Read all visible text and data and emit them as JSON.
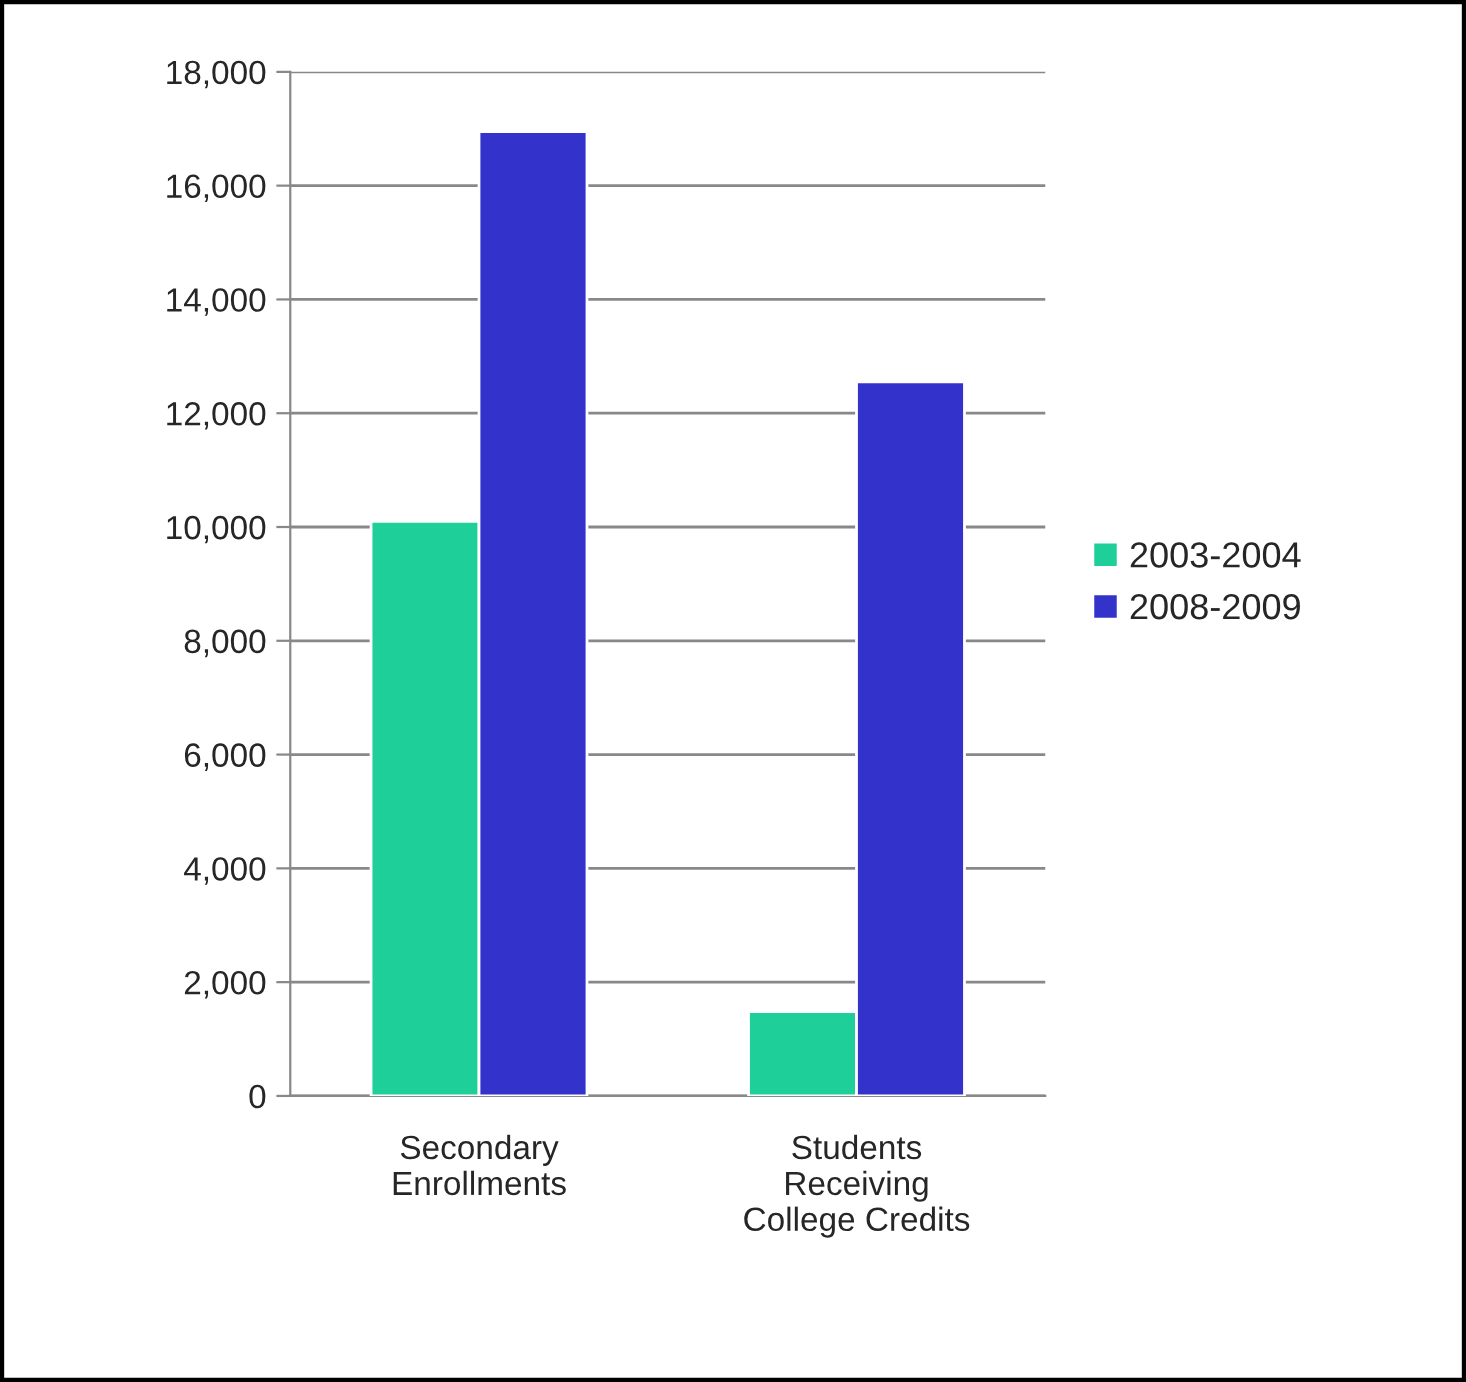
{
  "chart_data": {
    "type": "bar",
    "categories": [
      "Secondary\nEnrollments",
      "Students\nReceiving\nCollege Credits"
    ],
    "series": [
      {
        "name": "2003-2004",
        "color": "#1fcf9a",
        "values": [
          10100,
          1480
        ]
      },
      {
        "name": "2008-2009",
        "color": "#3333cc",
        "values": [
          16950,
          12550
        ]
      }
    ],
    "ylim": [
      0,
      18000
    ],
    "yticks": [
      0,
      {
        "value": 2000,
        "label": "2,000"
      },
      {
        "value": 4000,
        "label": "4,000"
      },
      {
        "value": 6000,
        "label": "6,000"
      },
      {
        "value": 8000,
        "label": "8,000"
      },
      {
        "value": 10000,
        "label": "10,000"
      },
      {
        "value": 12000,
        "label": "12,000"
      },
      {
        "value": 14000,
        "label": "14,000"
      },
      {
        "value": 16000,
        "label": "16,000"
      },
      {
        "value": 18000,
        "label": "18,000"
      }
    ],
    "grid": "y",
    "legend": "right"
  }
}
